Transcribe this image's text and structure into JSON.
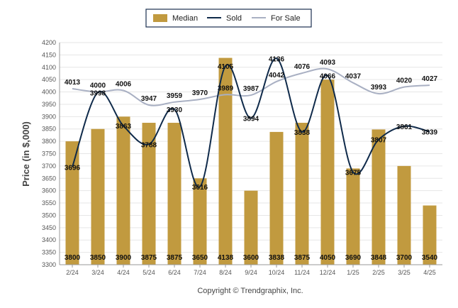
{
  "colors": {
    "median_bar": "#c19a3f",
    "sold_line": "#0f2a4a",
    "for_sale_line": "#a9b0c3",
    "grid": "#e6e6e6",
    "axis": "#999999"
  },
  "footer": {
    "copyright": "Copyright © Trendgraphix, Inc."
  },
  "chart_data": {
    "type": "bar",
    "title": "",
    "xlabel": "",
    "ylabel": "Price (in $,000)",
    "ylim": [
      3300,
      4200
    ],
    "y_ticks": [
      3300,
      3350,
      3400,
      3450,
      3500,
      3550,
      3600,
      3650,
      3700,
      3750,
      3800,
      3850,
      3900,
      3950,
      4000,
      4050,
      4100,
      4150,
      4200
    ],
    "grid": true,
    "legend_position": "top-center",
    "categories": [
      "2/24",
      "3/24",
      "4/24",
      "5/24",
      "6/24",
      "7/24",
      "8/24",
      "9/24",
      "10/24",
      "11/24",
      "12/24",
      "1/25",
      "2/25",
      "3/25",
      "4/25"
    ],
    "series": [
      {
        "name": "Median",
        "kind": "bar",
        "values": [
          3800,
          3850,
          3900,
          3875,
          3875,
          3650,
          4138,
          3600,
          3838,
          3875,
          4050,
          3690,
          3848,
          3700,
          3540
        ]
      },
      {
        "name": "Sold",
        "kind": "line",
        "values": [
          3696,
          3998,
          3863,
          3788,
          3930,
          3616,
          4105,
          3894,
          4136,
          3838,
          4066,
          3675,
          3807,
          3861,
          3839
        ]
      },
      {
        "name": "For Sale",
        "kind": "line",
        "values": [
          4013,
          4000,
          4006,
          3947,
          3959,
          3970,
          3989,
          3987,
          4042,
          4076,
          4093,
          4037,
          3993,
          4020,
          4027
        ]
      }
    ]
  }
}
